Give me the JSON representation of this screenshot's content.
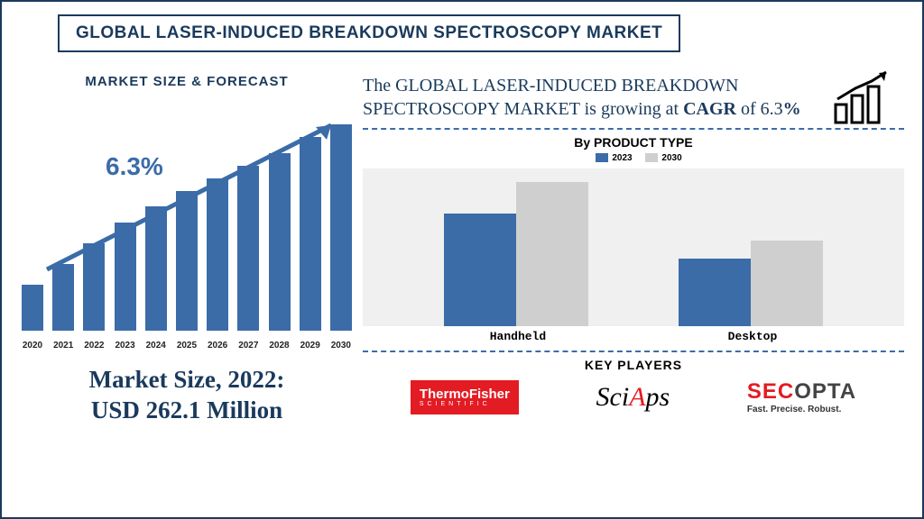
{
  "title": "GLOBAL LASER-INDUCED BREAKDOWN SPECTROSCOPY MARKET",
  "forecast": {
    "label": "MARKET SIZE & FORECAST",
    "cagr_label": "6.3%",
    "years": [
      "2020",
      "2021",
      "2022",
      "2023",
      "2024",
      "2025",
      "2026",
      "2027",
      "2028",
      "2029",
      "2030"
    ],
    "values": [
      55,
      80,
      105,
      130,
      150,
      168,
      183,
      198,
      213,
      233,
      248
    ],
    "bar_color": "#3b6ca8",
    "arrow_color": "#3b6ca8",
    "ymax": 260
  },
  "market_size": {
    "line1": "Market Size, 2022:",
    "line2": "USD 262.1 Million"
  },
  "growth": {
    "prefix": "The ",
    "subject": "GLOBAL LASER-INDUCED BREAKDOWN SPECTROSCOPY MARKET",
    "mid": " is growing at ",
    "cagr_word": "CAGR",
    "of": " of 6.3",
    "pct": "%"
  },
  "product_chart": {
    "title": "By PRODUCT TYPE",
    "legend": [
      {
        "label": "2023",
        "color": "#3b6ca8"
      },
      {
        "label": "2030",
        "color": "#cfcfcf"
      }
    ],
    "categories": [
      "Handheld",
      "Desktop"
    ],
    "series_2023": [
      125,
      75
    ],
    "series_2030": [
      160,
      95
    ],
    "ymax": 175,
    "bg": "#f0f0f0"
  },
  "key_players": {
    "title": "KEY PLAYERS",
    "thermo": {
      "name": "ThermoFisher",
      "sub": "SCIENTIFIC"
    },
    "sciaps": {
      "pre": "Sci",
      "accent": "A",
      "post": "ps"
    },
    "secopta": {
      "sec": "SEC",
      "opta": "OPTA",
      "tag": "Fast. Precise. Robust."
    }
  },
  "colors": {
    "navy": "#1a3a5c",
    "blue": "#3b6ca8",
    "grey": "#cfcfcf",
    "red": "#e31b23"
  }
}
